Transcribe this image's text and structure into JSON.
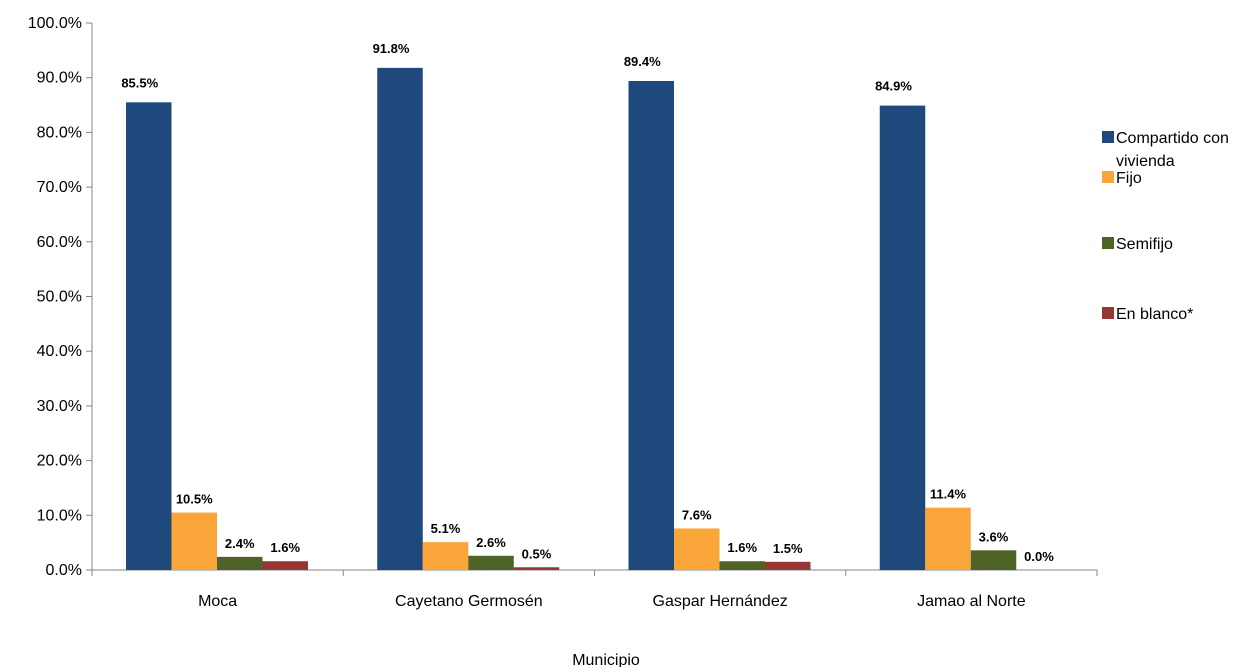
{
  "chart_data": {
    "type": "bar",
    "categories": [
      "Moca",
      "Cayetano Germosén",
      "Gaspar Hernández",
      "Jamao al Norte"
    ],
    "series": [
      {
        "name": "Compartido con vivienda",
        "name_lines": [
          "Compartido con",
          "vivienda"
        ],
        "values": [
          85.5,
          91.8,
          89.4,
          84.9
        ],
        "labels": [
          "85.5%",
          "91.8%",
          "89.4%",
          "84.9%"
        ],
        "color": "#1F497D"
      },
      {
        "name": "Fijo",
        "name_lines": [
          "Fijo"
        ],
        "values": [
          10.5,
          5.1,
          7.6,
          11.4
        ],
        "labels": [
          "10.5%",
          "5.1%",
          "7.6%",
          "11.4%"
        ],
        "color": "#F9A53A"
      },
      {
        "name": "Semifijo",
        "name_lines": [
          "Semifijo"
        ],
        "values": [
          2.4,
          2.6,
          1.6,
          3.6
        ],
        "labels": [
          "2.4%",
          "2.6%",
          "1.6%",
          "3.6%"
        ],
        "color": "#4F6228"
      },
      {
        "name": "En blanco*",
        "name_lines": [
          "En blanco*"
        ],
        "values": [
          1.6,
          0.5,
          1.5,
          0.0
        ],
        "labels": [
          "1.6%",
          "0.5%",
          "1.5%",
          "0.0%"
        ],
        "color": "#953735"
      }
    ],
    "y_ticks": [
      "0.0%",
      "10.0%",
      "20.0%",
      "30.0%",
      "40.0%",
      "50.0%",
      "60.0%",
      "70.0%",
      "80.0%",
      "90.0%",
      "100.0%"
    ],
    "ylim": [
      0,
      100
    ],
    "xlabel": "Municipio",
    "ylabel": "",
    "title": "",
    "grid": false,
    "legend_position": "right"
  }
}
